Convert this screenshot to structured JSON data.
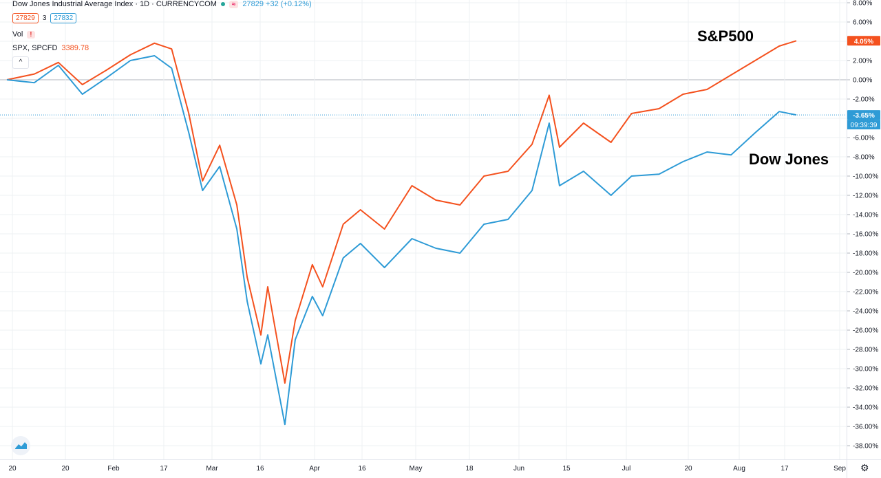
{
  "header": {
    "title": "Dow Jones Industrial Average Index · 1D · CURRENCYCOM",
    "price_info": "27829 +32 (+0.12%)",
    "bid": "27829",
    "spread": "3",
    "ask": "27832",
    "vol_label": "Vol",
    "warning_glyph": "!",
    "compare_icon_glyph": "≈",
    "compare_symbol": "SPX, SPCFD",
    "compare_value": "3389.78",
    "collapse_glyph": "^"
  },
  "labels": {
    "sp500": "S&P500",
    "dow": "Dow Jones"
  },
  "badges": {
    "sp500_value": "4.05%",
    "dow_value": "-3.65%",
    "countdown": "09:39:39"
  },
  "colors": {
    "sp500": "#f4511e",
    "dow": "#2e9bd6",
    "grid": "#eef0f3",
    "zero_line": "#b2b5be"
  },
  "chart_data": {
    "type": "line",
    "x": [
      "2020-01-02",
      "2020-01-10",
      "2020-01-17",
      "2020-01-24",
      "2020-01-31",
      "2020-02-07",
      "2020-02-14",
      "2020-02-19",
      "2020-02-24",
      "2020-02-28",
      "2020-03-04",
      "2020-03-09",
      "2020-03-12",
      "2020-03-16",
      "2020-03-18",
      "2020-03-23",
      "2020-03-26",
      "2020-03-31",
      "2020-04-03",
      "2020-04-09",
      "2020-04-14",
      "2020-04-21",
      "2020-04-29",
      "2020-05-06",
      "2020-05-13",
      "2020-05-20",
      "2020-05-27",
      "2020-06-03",
      "2020-06-08",
      "2020-06-11",
      "2020-06-18",
      "2020-06-26",
      "2020-07-02",
      "2020-07-10",
      "2020-07-17",
      "2020-07-24",
      "2020-07-31",
      "2020-08-07",
      "2020-08-14",
      "2020-08-19"
    ],
    "xticks": [
      "20",
      "20",
      "Feb",
      "17",
      "Mar",
      "16",
      "Apr",
      "16",
      "May",
      "18",
      "Jun",
      "15",
      "Jul",
      "20",
      "Aug",
      "17",
      "Sep"
    ],
    "yticks": [
      "8.00%",
      "6.00%",
      "4.00%",
      "2.00%",
      "0.00%",
      "-2.00%",
      "-4.00%",
      "-6.00%",
      "-8.00%",
      "-10.00%",
      "-12.00%",
      "-14.00%",
      "-16.00%",
      "-18.00%",
      "-20.00%",
      "-22.00%",
      "-24.00%",
      "-26.00%",
      "-28.00%",
      "-30.00%",
      "-32.00%",
      "-34.00%",
      "-36.00%",
      "-38.00%"
    ],
    "ylim": [
      -39.5,
      8
    ],
    "series": [
      {
        "name": "SPX, SPCFD",
        "values": [
          0,
          0.6,
          1.8,
          -0.5,
          1.0,
          2.6,
          3.8,
          3.2,
          -3.5,
          -10.5,
          -6.8,
          -13.0,
          -20.5,
          -26.5,
          -21.5,
          -31.5,
          -25.0,
          -19.2,
          -21.5,
          -15.0,
          -13.5,
          -15.5,
          -11.0,
          -12.5,
          -13.0,
          -10.0,
          -9.5,
          -6.7,
          -1.6,
          -7.0,
          -4.5,
          -6.5,
          -3.5,
          -3.0,
          -1.5,
          -1.0,
          0.5,
          2.0,
          3.5,
          4.05
        ]
      },
      {
        "name": "Dow Jones Industrial Average Index",
        "values": [
          0,
          -0.3,
          1.5,
          -1.5,
          0.2,
          2.0,
          2.5,
          1.2,
          -5.5,
          -11.5,
          -9.0,
          -15.5,
          -23.0,
          -29.5,
          -26.5,
          -35.8,
          -27.0,
          -22.5,
          -24.5,
          -18.5,
          -17.0,
          -19.5,
          -16.5,
          -17.5,
          -18.0,
          -15.0,
          -14.5,
          -11.5,
          -4.5,
          -11.0,
          -9.5,
          -12.0,
          -10.0,
          -9.8,
          -8.5,
          -7.5,
          -7.8,
          -5.5,
          -3.3,
          -3.65
        ]
      }
    ]
  }
}
